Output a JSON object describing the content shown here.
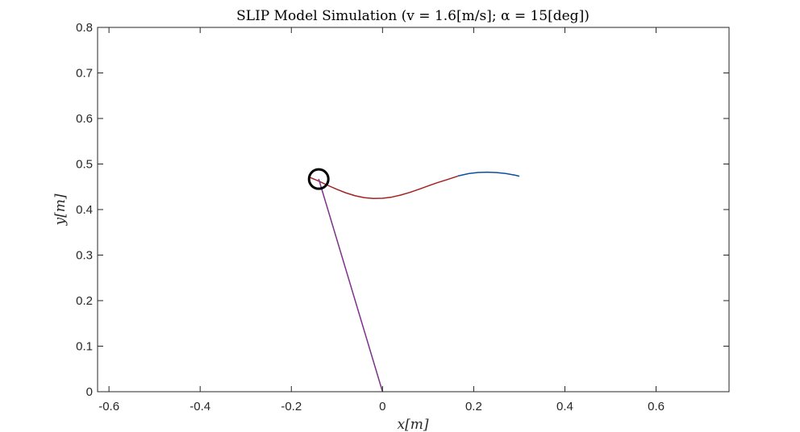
{
  "chart_data": {
    "type": "line",
    "title": "SLIP Model Simulation (v = 1.6[m/s]; α = 15[deg])",
    "xlabel": "x[m]",
    "ylabel": "y[m]",
    "xlim": [
      -0.625,
      0.76
    ],
    "ylim": [
      0,
      0.8
    ],
    "xticks": [
      -0.6,
      -0.4,
      -0.2,
      0,
      0.2,
      0.4,
      0.6
    ],
    "xtick_labels": [
      "-0.6",
      "-0.4",
      "-0.2",
      "0",
      "0.2",
      "0.4",
      "0.6"
    ],
    "yticks": [
      0,
      0.1,
      0.2,
      0.3,
      0.4,
      0.5,
      0.6,
      0.7,
      0.8
    ],
    "ytick_labels": [
      "0",
      "0.1",
      "0.2",
      "0.3",
      "0.4",
      "0.5",
      "0.6",
      "0.7",
      "0.8"
    ],
    "grid": false,
    "series": [
      {
        "color": "#0b4ea2",
        "x": [
          0.165,
          0.19,
          0.21,
          0.23,
          0.25,
          0.27,
          0.29,
          0.3
        ],
        "y": [
          0.4737,
          0.4792,
          0.4815,
          0.482,
          0.4813,
          0.4792,
          0.4756,
          0.4733
        ]
      },
      {
        "color": "#a5211f",
        "x": [
          -0.162,
          -0.14,
          -0.12,
          -0.1,
          -0.08,
          -0.06,
          -0.04,
          -0.02,
          0,
          0.02,
          0.04,
          0.06,
          0.08,
          0.1,
          0.12,
          0.14,
          0.165
        ],
        "y": [
          0.4717,
          0.4624,
          0.4531,
          0.4443,
          0.4365,
          0.4303,
          0.4261,
          0.4243,
          0.4247,
          0.4273,
          0.4318,
          0.4377,
          0.4446,
          0.4518,
          0.4589,
          0.4651,
          0.4733
        ]
      },
      {
        "color": "#7e2f8e",
        "x": [
          0,
          -0.14
        ],
        "y": [
          0,
          0.467
        ]
      }
    ],
    "body_marker": {
      "x": -0.14,
      "y": 0.467,
      "color": "#000000"
    }
  }
}
